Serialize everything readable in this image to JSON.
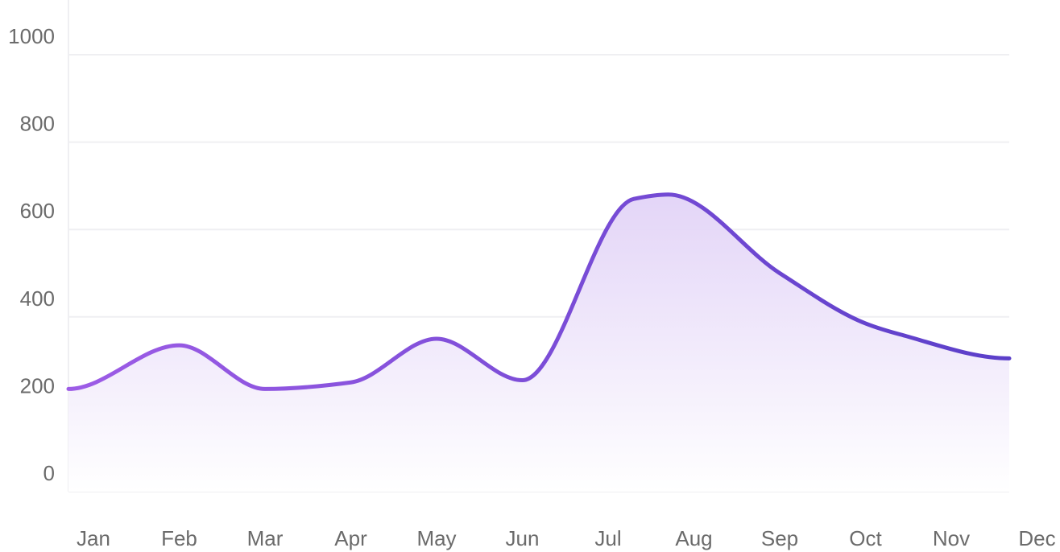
{
  "chart_data": {
    "type": "area",
    "title": "",
    "xlabel": "",
    "ylabel": "",
    "categories": [
      "Jan",
      "Feb",
      "Mar",
      "Apr",
      "May",
      "Jun",
      "Jul",
      "Aug",
      "Sep",
      "Oct",
      "Nov",
      "Dec"
    ],
    "y_ticks": [
      0,
      200,
      400,
      600,
      800,
      1000
    ],
    "ylim": [
      0,
      1000
    ],
    "grid": true,
    "curve": "smooth",
    "series": [
      {
        "values": [
          235,
          335,
          235,
          250,
          350,
          255,
          670,
          680,
          500,
          385,
          360,
          305
        ],
        "x": [
          0,
          1,
          2,
          3,
          4,
          5,
          6.3,
          6.7,
          8,
          9,
          9.4,
          10.7
        ]
      }
    ],
    "colors": {
      "line_start": "#9d5ce6",
      "line_end": "#5b3fc9",
      "fill_top": "#e2d3f7",
      "fill_bottom": "#ffffff",
      "grid": "#efeff2",
      "tick_text": "#6b6b6b"
    }
  }
}
